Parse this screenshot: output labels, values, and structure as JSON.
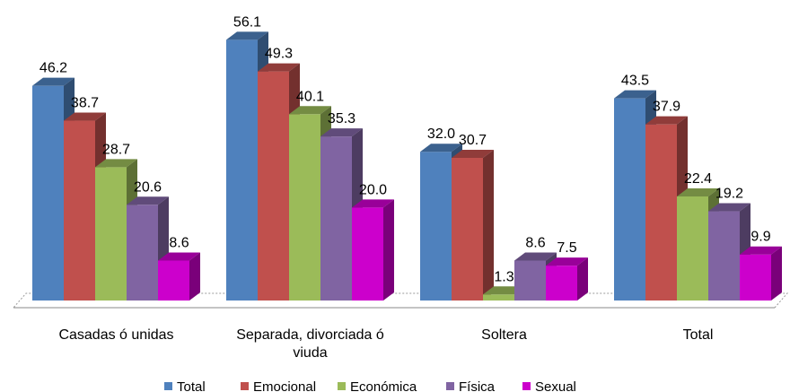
{
  "chart_data": {
    "type": "bar3d",
    "categories": [
      "Casadas ó unidas",
      "Separada, divorciada ó viuda",
      "Soltera",
      "Total"
    ],
    "series": [
      {
        "name": "Total",
        "color": "#4f81bd",
        "values": [
          46.2,
          56.1,
          32.0,
          43.5
        ],
        "value_labels": [
          "46.2",
          "56.1",
          "32.0",
          "43.5"
        ]
      },
      {
        "name": "Emocional",
        "color": "#c0504d",
        "values": [
          38.7,
          49.3,
          30.7,
          37.9
        ],
        "value_labels": [
          "38.7",
          "49.3",
          "30.7",
          "37.9"
        ]
      },
      {
        "name": "Económica",
        "color": "#9bbb59",
        "values": [
          28.7,
          40.1,
          1.3,
          22.4
        ],
        "value_labels": [
          "28.7",
          "40.1",
          "1.3",
          "22.4"
        ]
      },
      {
        "name": "Física",
        "color": "#8064a2",
        "values": [
          20.6,
          35.3,
          8.6,
          19.2
        ],
        "value_labels": [
          "20.6",
          "35.3",
          "8.6",
          "19.2"
        ]
      },
      {
        "name": "Sexual",
        "color": "#cc00cc",
        "values": [
          8.6,
          20.0,
          7.5,
          9.9
        ],
        "value_labels": [
          "8.6",
          "20.0",
          "7.5",
          "9.9"
        ]
      }
    ],
    "legend": "bottom"
  }
}
